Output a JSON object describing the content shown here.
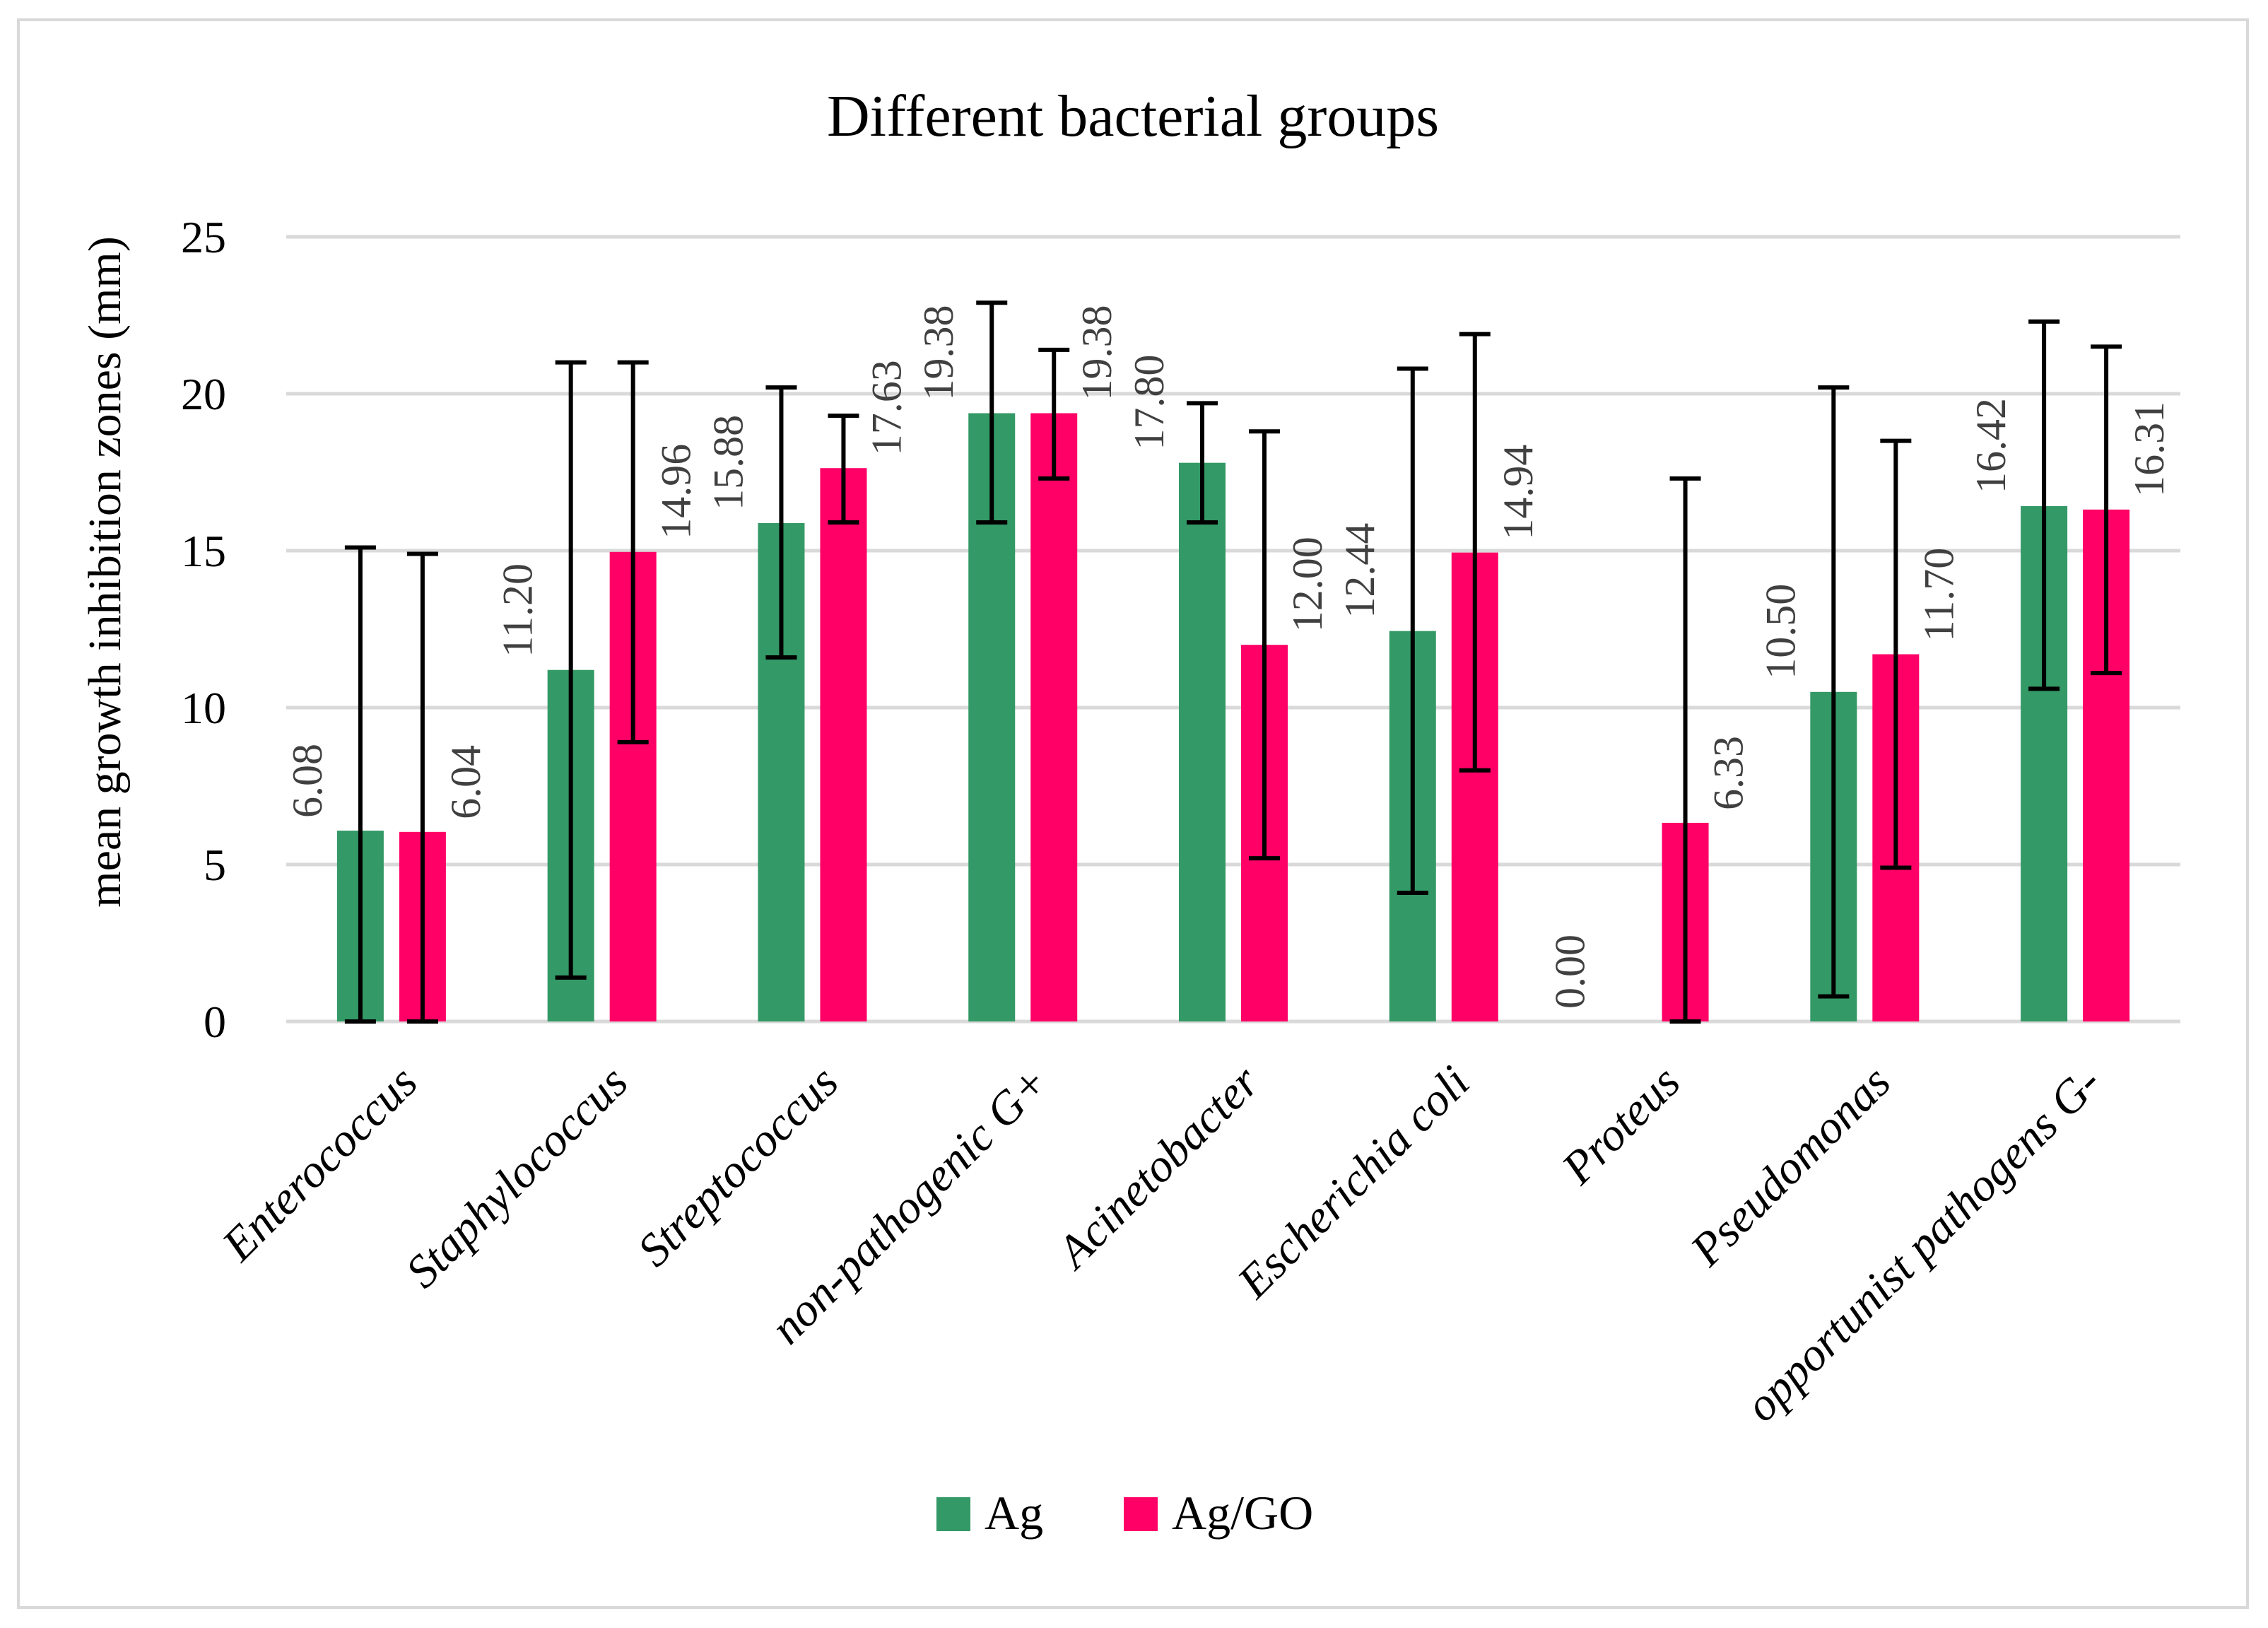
{
  "chart_data": {
    "type": "bar",
    "title": "Different bacterial groups",
    "xlabel": "",
    "ylabel": "mean growth inhibition zones (mm)",
    "ylim": [
      0,
      25
    ],
    "yticks": [
      0,
      5,
      10,
      15,
      20,
      25
    ],
    "grid": true,
    "legend_position": "bottom",
    "categories": [
      "Enterococcus",
      "Staphylococcus",
      "Streptococcus",
      "non-pathogenic G+",
      "Acinetobacter",
      "Escherichia coli",
      "Proteus",
      "Pseudomonas",
      "opportunist pathogens G-"
    ],
    "series": [
      {
        "name": "Ag",
        "color": "#339966",
        "values": [
          6.08,
          11.2,
          15.88,
          19.38,
          17.8,
          12.44,
          0.0,
          10.5,
          16.42
        ],
        "labels": [
          "6.08",
          "11.20",
          "15.88",
          "19.38",
          "17.80",
          "12.44",
          "0.00",
          "10.50",
          "16.42"
        ],
        "error_low": [
          0.0,
          1.4,
          11.6,
          15.9,
          15.9,
          4.1,
          0.0,
          0.8,
          10.6
        ],
        "error_high": [
          15.1,
          21.0,
          20.2,
          22.9,
          19.7,
          20.8,
          0.0,
          20.2,
          22.3
        ]
      },
      {
        "name": "Ag/GO",
        "color": "#ff0066",
        "values": [
          6.04,
          14.96,
          17.63,
          19.38,
          12.0,
          14.94,
          6.33,
          11.7,
          16.31
        ],
        "labels": [
          "6.04",
          "14.96",
          "17.63",
          "19.38",
          "12.00",
          "14.94",
          "6.33",
          "11.70",
          "16.31"
        ],
        "error_low": [
          0.0,
          8.9,
          15.9,
          17.3,
          5.2,
          8.0,
          0.0,
          4.9,
          11.1
        ],
        "error_high": [
          14.9,
          21.0,
          19.3,
          21.4,
          18.8,
          21.9,
          17.3,
          18.5,
          21.5
        ]
      }
    ]
  }
}
